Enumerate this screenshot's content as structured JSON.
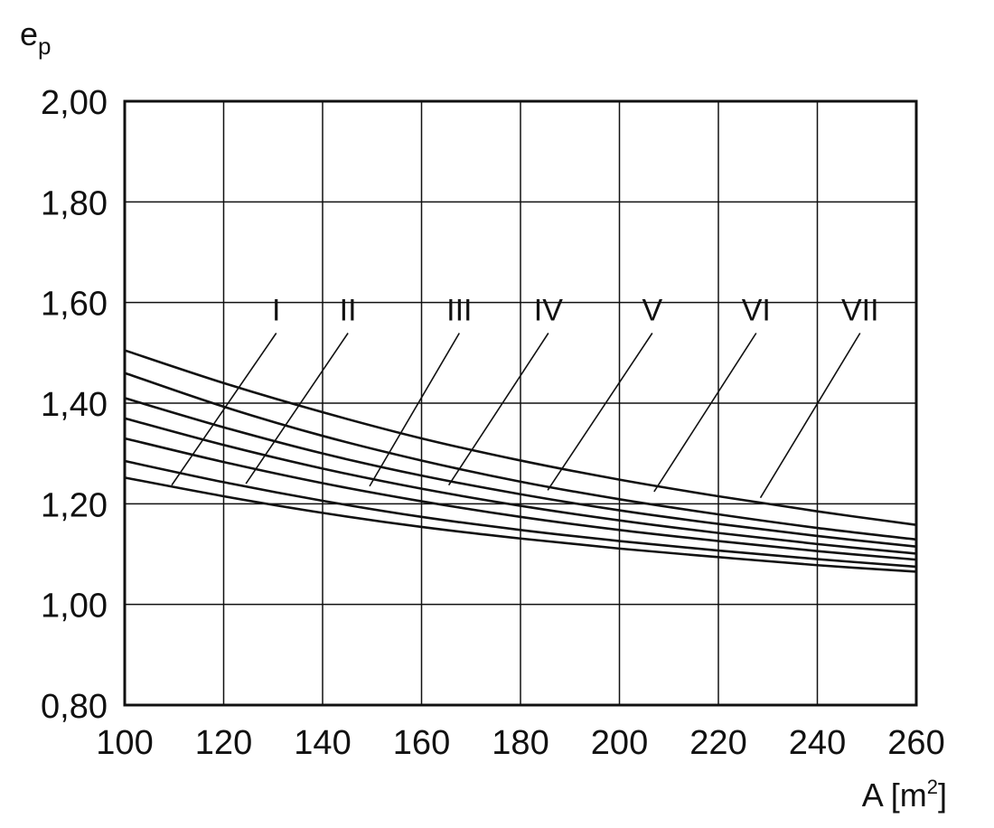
{
  "chart_data": {
    "type": "line",
    "ylabel_main": "e",
    "ylabel_sub": "p",
    "xlabel_main": "A [m",
    "xlabel_sup": "2",
    "xlabel_end": "]",
    "xlim": [
      100,
      260
    ],
    "ylim": [
      0.8,
      2.0
    ],
    "xticks": [
      100,
      120,
      140,
      160,
      180,
      200,
      220,
      240,
      260
    ],
    "xtick_labels": [
      "100",
      "120",
      "140",
      "160",
      "180",
      "200",
      "220",
      "240",
      "260"
    ],
    "yticks": [
      0.8,
      1.0,
      1.2,
      1.4,
      1.6,
      1.8,
      2.0
    ],
    "ytick_labels": [
      "0,80",
      "1,00",
      "1,20",
      "1,40",
      "1,60",
      "1,80",
      "2,00"
    ],
    "grid": true,
    "series": [
      {
        "name": "I",
        "x": [
          100,
          120,
          140,
          160,
          180,
          200,
          220,
          240,
          260
        ],
        "y": [
          1.252,
          1.215,
          1.182,
          1.154,
          1.131,
          1.111,
          1.094,
          1.078,
          1.065
        ],
        "label_x": 131,
        "label_y": 1.55,
        "leader_end": [
          109.5,
          1.237
        ]
      },
      {
        "name": "II",
        "x": [
          100,
          120,
          140,
          160,
          180,
          200,
          220,
          240,
          260
        ],
        "y": [
          1.285,
          1.243,
          1.206,
          1.174,
          1.148,
          1.126,
          1.107,
          1.09,
          1.075
        ],
        "label_x": 145.5,
        "label_y": 1.55,
        "leader_end": [
          124.5,
          1.24
        ]
      },
      {
        "name": "III",
        "x": [
          100,
          120,
          140,
          160,
          180,
          200,
          220,
          240,
          260
        ],
        "y": [
          1.33,
          1.283,
          1.241,
          1.205,
          1.174,
          1.148,
          1.126,
          1.106,
          1.089
        ],
        "label_x": 168,
        "label_y": 1.55,
        "leader_end": [
          149.5,
          1.235
        ]
      },
      {
        "name": "IV",
        "x": [
          100,
          120,
          140,
          160,
          180,
          200,
          220,
          240,
          260
        ],
        "y": [
          1.37,
          1.317,
          1.27,
          1.23,
          1.196,
          1.167,
          1.142,
          1.12,
          1.101
        ],
        "label_x": 186,
        "label_y": 1.55,
        "leader_end": [
          165.5,
          1.237
        ]
      },
      {
        "name": "V",
        "x": [
          100,
          120,
          140,
          160,
          180,
          200,
          220,
          240,
          260
        ],
        "y": [
          1.41,
          1.352,
          1.3,
          1.256,
          1.219,
          1.187,
          1.16,
          1.136,
          1.115
        ],
        "label_x": 207,
        "label_y": 1.55,
        "leader_end": [
          185.5,
          1.227
        ]
      },
      {
        "name": "VI",
        "x": [
          100,
          120,
          140,
          160,
          180,
          200,
          220,
          240,
          260
        ],
        "y": [
          1.46,
          1.393,
          1.335,
          1.286,
          1.244,
          1.209,
          1.179,
          1.152,
          1.129
        ],
        "label_x": 228,
        "label_y": 1.55,
        "leader_end": [
          207,
          1.224
        ]
      },
      {
        "name": "VII",
        "x": [
          100,
          120,
          140,
          160,
          180,
          200,
          220,
          240,
          260
        ],
        "y": [
          1.505,
          1.44,
          1.382,
          1.33,
          1.286,
          1.248,
          1.215,
          1.185,
          1.158
        ],
        "label_x": 249,
        "label_y": 1.55,
        "leader_end": [
          228.5,
          1.212
        ]
      }
    ]
  }
}
